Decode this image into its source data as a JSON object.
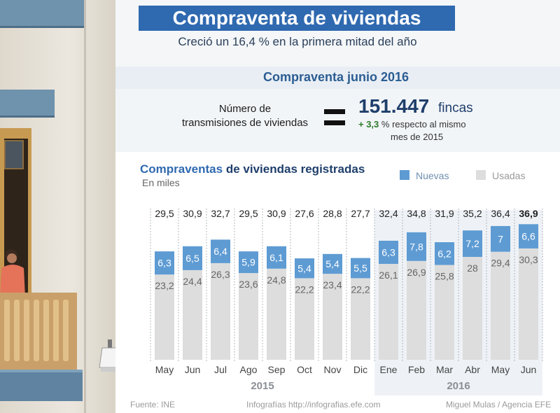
{
  "header": {
    "title": "Compraventa de viviendas",
    "subtitle": "Creció un 16,4 % en la primera mitad del año"
  },
  "summary": {
    "section_title": "Compraventa junio 2016",
    "label_line1": "Número de",
    "label_line2": "transmisiones de viviendas",
    "value": "151.447",
    "unit": "fincas",
    "change": "+ 3,3",
    "change_text": "% respecto al mismo",
    "change_text2": "mes de 2015"
  },
  "colors": {
    "title_bg": "#2f69b0",
    "new_bar": "#5e9bd3",
    "used_bar": "#dddddd",
    "highlight_band": "#eef2f6"
  },
  "chart_data": {
    "type": "bar",
    "stacked": true,
    "title_part1": "Compraventas",
    "title_part2": "de viviendas registradas",
    "unit_label": "En miles",
    "categories": [
      "May",
      "Jun",
      "Jul",
      "Ago",
      "Sep",
      "Oct",
      "Nov",
      "Dic",
      "Ene",
      "Feb",
      "Mar",
      "Abr",
      "May",
      "Jun"
    ],
    "year_labels": [
      {
        "label": "2015",
        "from": 0,
        "to": 7
      },
      {
        "label": "2016",
        "from": 8,
        "to": 13
      }
    ],
    "series": [
      {
        "name": "Usadas",
        "values": [
          23.2,
          24.4,
          26.3,
          23.6,
          24.8,
          22.2,
          23.4,
          22.2,
          26.1,
          26.9,
          25.8,
          28,
          29.4,
          30.3
        ],
        "labels": [
          "23,2",
          "24,4",
          "26,3",
          "23,6",
          "24,8",
          "22,2",
          "23,4",
          "22,2",
          "26,1",
          "26,9",
          "25,8",
          "28",
          "29,4",
          "30,3"
        ]
      },
      {
        "name": "Nuevas",
        "values": [
          6.3,
          6.5,
          6.4,
          5.9,
          6.1,
          5.4,
          5.4,
          5.5,
          6.3,
          7.8,
          6.2,
          7.2,
          7,
          6.6
        ],
        "labels": [
          "6,3",
          "6,5",
          "6,4",
          "5,9",
          "6,1",
          "5,4",
          "5,4",
          "5,5",
          "6,3",
          "7,8",
          "6,2",
          "7,2",
          "7",
          "6,6"
        ]
      }
    ],
    "totals": [
      29.5,
      30.9,
      32.7,
      29.5,
      30.9,
      27.6,
      28.8,
      27.7,
      32.4,
      34.8,
      31.9,
      35.2,
      36.4,
      36.9
    ],
    "total_labels": [
      "29,5",
      "30,9",
      "32,7",
      "29,5",
      "30,9",
      "27,6",
      "28,8",
      "27,7",
      "32,4",
      "34,8",
      "31,9",
      "35,2",
      "36,4",
      "36,9"
    ],
    "highlight_last_total": true,
    "legend": [
      {
        "name": "Nuevas",
        "color": "#5e9bd3"
      },
      {
        "name": "Usadas",
        "color": "#dddddd"
      }
    ],
    "ylim": [
      0,
      40
    ]
  },
  "footer": {
    "source": "Fuente: INE",
    "web": "Infografías http://infografias.efe.com",
    "author": "Miguel Mulas / Agencia EFE"
  }
}
